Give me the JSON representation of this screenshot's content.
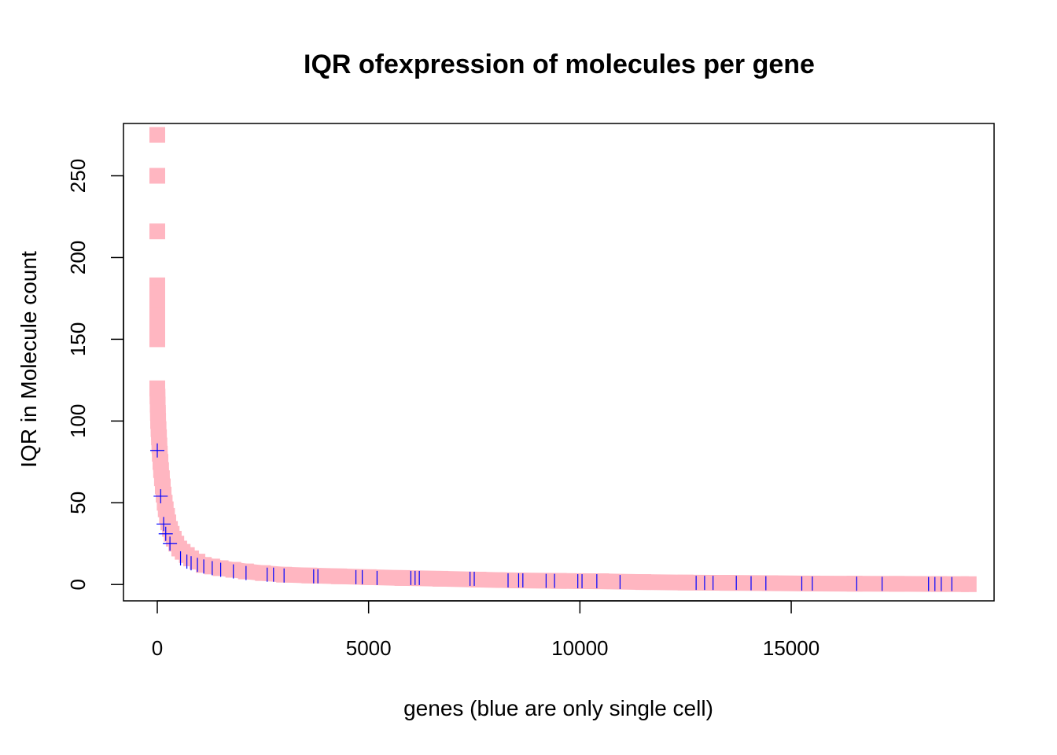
{
  "chart_data": {
    "type": "scatter",
    "title": "IQR ofexpression of molecules per gene",
    "xlabel": "genes (blue are only single cell)",
    "ylabel": "IQR in Molecule count",
    "xlim": [
      -800,
      19800
    ],
    "ylim": [
      -10,
      282
    ],
    "x_ticks": [
      0,
      5000,
      10000,
      15000
    ],
    "y_ticks": [
      0,
      50,
      100,
      150,
      200,
      250
    ],
    "grid": false,
    "legend": "none",
    "colors": {
      "pink": "#ffb6c1",
      "blue": "#0000ff",
      "axis": "#000000"
    },
    "pink_points": [
      {
        "x": 0,
        "y": 275
      },
      {
        "x": 0,
        "y": 250
      },
      {
        "x": 0,
        "y": 216
      },
      {
        "x": 0,
        "y": 183
      },
      {
        "x": 0,
        "y": 178
      },
      {
        "x": 0,
        "y": 172
      },
      {
        "x": 0,
        "y": 165
      },
      {
        "x": 0,
        "y": 160
      },
      {
        "x": 0,
        "y": 154
      },
      {
        "x": 0,
        "y": 150
      },
      {
        "x": 0,
        "y": 120
      },
      {
        "x": 5,
        "y": 115
      },
      {
        "x": 10,
        "y": 110
      },
      {
        "x": 15,
        "y": 105
      },
      {
        "x": 20,
        "y": 100
      },
      {
        "x": 30,
        "y": 95
      },
      {
        "x": 40,
        "y": 90
      },
      {
        "x": 50,
        "y": 85
      },
      {
        "x": 60,
        "y": 80
      },
      {
        "x": 75,
        "y": 75
      },
      {
        "x": 90,
        "y": 70
      },
      {
        "x": 110,
        "y": 65
      },
      {
        "x": 130,
        "y": 60
      },
      {
        "x": 150,
        "y": 55
      },
      {
        "x": 175,
        "y": 50
      },
      {
        "x": 200,
        "y": 46
      },
      {
        "x": 230,
        "y": 42
      },
      {
        "x": 260,
        "y": 38
      },
      {
        "x": 300,
        "y": 34
      },
      {
        "x": 340,
        "y": 31
      },
      {
        "x": 390,
        "y": 28
      },
      {
        "x": 450,
        "y": 25
      },
      {
        "x": 520,
        "y": 22
      },
      {
        "x": 600,
        "y": 20
      },
      {
        "x": 700,
        "y": 18
      },
      {
        "x": 800,
        "y": 16
      },
      {
        "x": 950,
        "y": 14
      },
      {
        "x": 1100,
        "y": 12
      },
      {
        "x": 1300,
        "y": 11
      },
      {
        "x": 1500,
        "y": 10
      },
      {
        "x": 1800,
        "y": 9
      },
      {
        "x": 2100,
        "y": 8
      },
      {
        "x": 2500,
        "y": 7
      },
      {
        "x": 3000,
        "y": 6
      },
      {
        "x": 3600,
        "y": 5.5
      },
      {
        "x": 4300,
        "y": 5
      },
      {
        "x": 5000,
        "y": 4.5
      },
      {
        "x": 5800,
        "y": 4
      },
      {
        "x": 6700,
        "y": 3.5
      },
      {
        "x": 7600,
        "y": 3
      },
      {
        "x": 8500,
        "y": 2.5
      },
      {
        "x": 9500,
        "y": 2.2
      },
      {
        "x": 10500,
        "y": 2
      },
      {
        "x": 11500,
        "y": 1.5
      },
      {
        "x": 12500,
        "y": 1.2
      },
      {
        "x": 13500,
        "y": 1
      },
      {
        "x": 14500,
        "y": 0.8
      },
      {
        "x": 15500,
        "y": 0.6
      },
      {
        "x": 16500,
        "y": 0.5
      },
      {
        "x": 17500,
        "y": 0.4
      },
      {
        "x": 18500,
        "y": 0.3
      },
      {
        "x": 19200,
        "y": 0.2
      }
    ],
    "blue_points": [
      {
        "x": 0,
        "y": 82
      },
      {
        "x": 80,
        "y": 54
      },
      {
        "x": 150,
        "y": 37
      },
      {
        "x": 200,
        "y": 31
      },
      {
        "x": 300,
        "y": 25
      },
      {
        "x": 550,
        "y": 16
      },
      {
        "x": 700,
        "y": 14
      },
      {
        "x": 800,
        "y": 13
      },
      {
        "x": 950,
        "y": 12
      },
      {
        "x": 1100,
        "y": 11
      },
      {
        "x": 1300,
        "y": 10
      },
      {
        "x": 1500,
        "y": 9
      },
      {
        "x": 1800,
        "y": 8
      },
      {
        "x": 2100,
        "y": 7
      },
      {
        "x": 2600,
        "y": 6
      },
      {
        "x": 2750,
        "y": 6
      },
      {
        "x": 3000,
        "y": 5.5
      },
      {
        "x": 3700,
        "y": 5
      },
      {
        "x": 3800,
        "y": 5
      },
      {
        "x": 4700,
        "y": 4.5
      },
      {
        "x": 4850,
        "y": 4.5
      },
      {
        "x": 5200,
        "y": 4
      },
      {
        "x": 6000,
        "y": 4
      },
      {
        "x": 6100,
        "y": 4
      },
      {
        "x": 6200,
        "y": 4
      },
      {
        "x": 7400,
        "y": 3.5
      },
      {
        "x": 7500,
        "y": 3.5
      },
      {
        "x": 8300,
        "y": 2.5
      },
      {
        "x": 8550,
        "y": 2.5
      },
      {
        "x": 8650,
        "y": 2.5
      },
      {
        "x": 9200,
        "y": 2.2
      },
      {
        "x": 9400,
        "y": 2.2
      },
      {
        "x": 9950,
        "y": 2
      },
      {
        "x": 10050,
        "y": 2
      },
      {
        "x": 10400,
        "y": 2
      },
      {
        "x": 10950,
        "y": 1.5
      },
      {
        "x": 12750,
        "y": 1
      },
      {
        "x": 12950,
        "y": 1
      },
      {
        "x": 13150,
        "y": 1
      },
      {
        "x": 13700,
        "y": 1
      },
      {
        "x": 14050,
        "y": 0.8
      },
      {
        "x": 14400,
        "y": 0.8
      },
      {
        "x": 15250,
        "y": 0.6
      },
      {
        "x": 15500,
        "y": 0.6
      },
      {
        "x": 16550,
        "y": 0.5
      },
      {
        "x": 17150,
        "y": 0.4
      },
      {
        "x": 18250,
        "y": 0.3
      },
      {
        "x": 18400,
        "y": 0.3
      },
      {
        "x": 18550,
        "y": 0.3
      },
      {
        "x": 18800,
        "y": 0.3
      }
    ]
  }
}
